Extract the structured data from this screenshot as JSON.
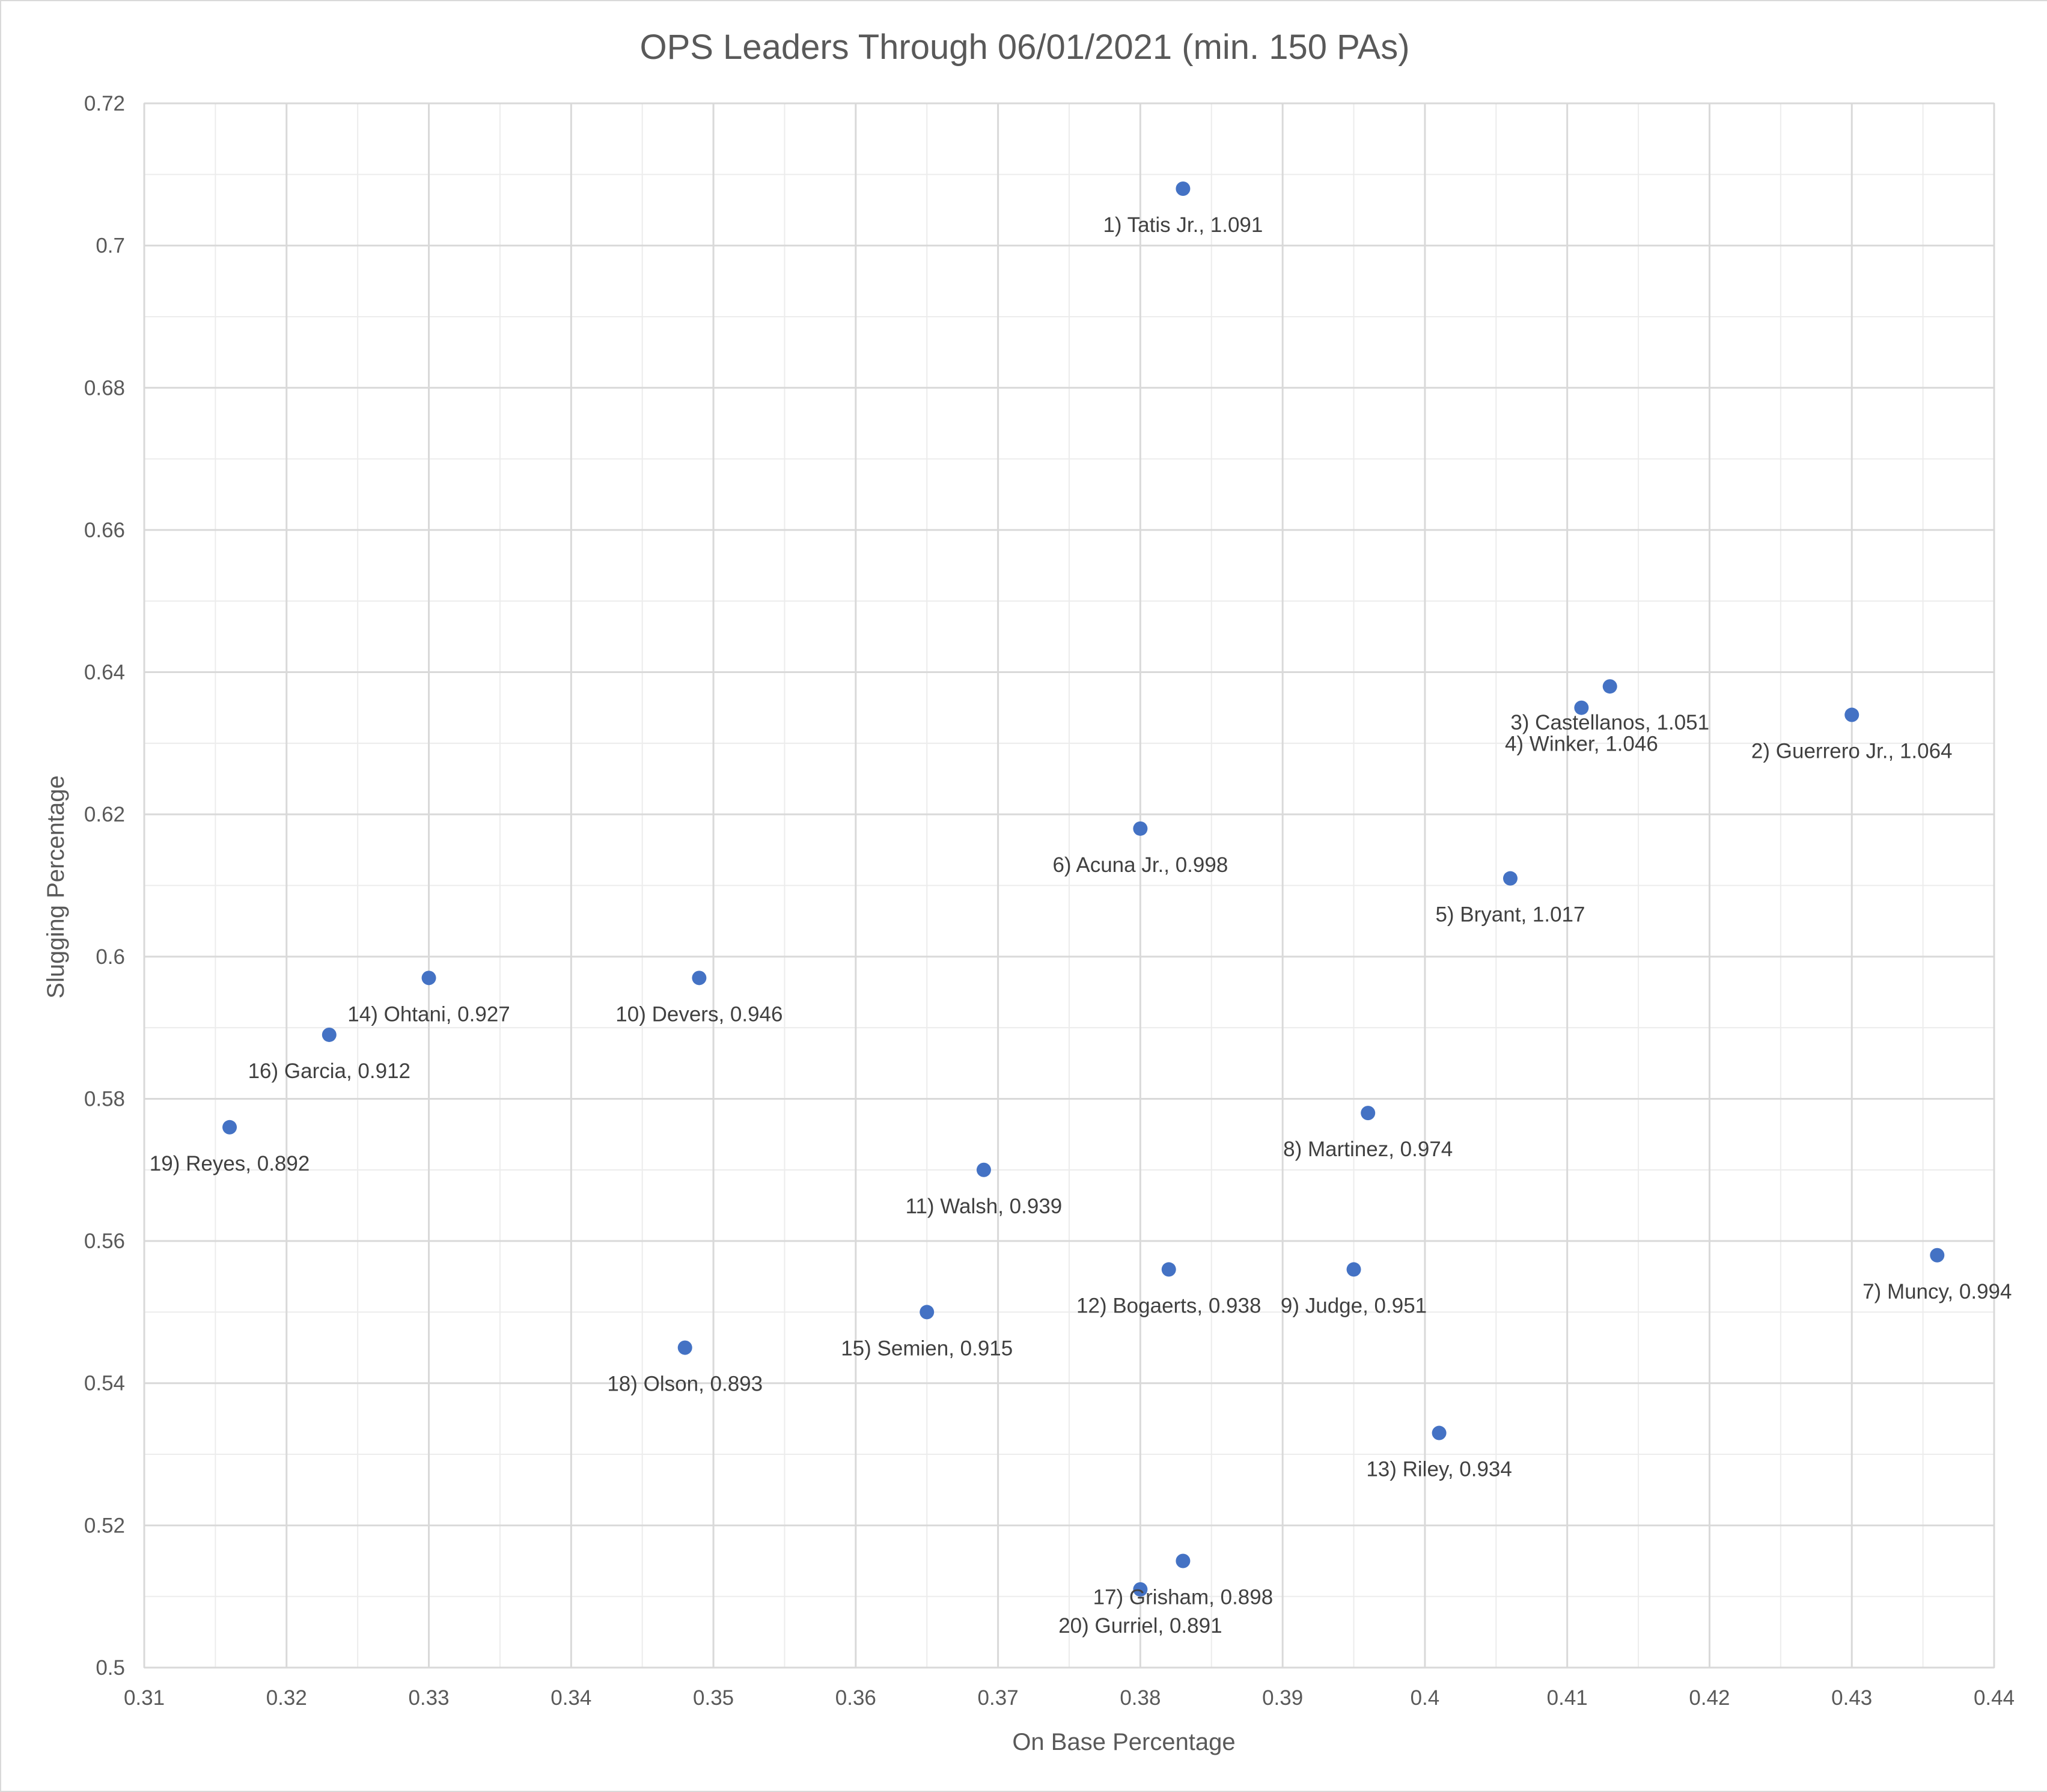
{
  "chart_data": {
    "type": "scatter",
    "title": "OPS Leaders Through 06/01/2021 (min. 150 PAs)",
    "xlabel": "On Base Percentage",
    "ylabel": "Slugging Percentage",
    "xlim": [
      0.31,
      0.44
    ],
    "ylim": [
      0.5,
      0.72
    ],
    "xticks": [
      {
        "value": 0.31,
        "label": "0.31"
      },
      {
        "value": 0.32,
        "label": "0.32"
      },
      {
        "value": 0.33,
        "label": "0.33"
      },
      {
        "value": 0.34,
        "label": "0.34"
      },
      {
        "value": 0.35,
        "label": "0.35"
      },
      {
        "value": 0.36,
        "label": "0.36"
      },
      {
        "value": 0.37,
        "label": "0.37"
      },
      {
        "value": 0.38,
        "label": "0.38"
      },
      {
        "value": 0.39,
        "label": "0.39"
      },
      {
        "value": 0.4,
        "label": "0.4"
      },
      {
        "value": 0.41,
        "label": "0.41"
      },
      {
        "value": 0.42,
        "label": "0.42"
      },
      {
        "value": 0.43,
        "label": "0.43"
      },
      {
        "value": 0.44,
        "label": "0.44"
      }
    ],
    "yticks": [
      {
        "value": 0.5,
        "label": "0.5"
      },
      {
        "value": 0.52,
        "label": "0.52"
      },
      {
        "value": 0.54,
        "label": "0.54"
      },
      {
        "value": 0.56,
        "label": "0.56"
      },
      {
        "value": 0.58,
        "label": "0.58"
      },
      {
        "value": 0.6,
        "label": "0.6"
      },
      {
        "value": 0.62,
        "label": "0.62"
      },
      {
        "value": 0.64,
        "label": "0.64"
      },
      {
        "value": 0.66,
        "label": "0.66"
      },
      {
        "value": 0.68,
        "label": "0.68"
      },
      {
        "value": 0.7,
        "label": "0.7"
      },
      {
        "value": 0.72,
        "label": "0.72"
      }
    ],
    "grid": true,
    "minor_grid": true,
    "legend": "none",
    "colors": {
      "marker": "#4472c4",
      "gridline": "#d9d9d9",
      "minor_gridline": "#ececec",
      "text": "#595959"
    },
    "points": [
      {
        "x": 0.383,
        "y": 0.708,
        "label": "1) Tatis Jr., 1.091"
      },
      {
        "x": 0.43,
        "y": 0.634,
        "label": "2) Guerrero Jr., 1.064"
      },
      {
        "x": 0.413,
        "y": 0.638,
        "label": "3) Castellanos, 1.051"
      },
      {
        "x": 0.411,
        "y": 0.635,
        "label": "4) Winker, 1.046"
      },
      {
        "x": 0.406,
        "y": 0.611,
        "label": "5) Bryant, 1.017"
      },
      {
        "x": 0.38,
        "y": 0.618,
        "label": "6) Acuna Jr., 0.998"
      },
      {
        "x": 0.436,
        "y": 0.558,
        "label": "7) Muncy, 0.994"
      },
      {
        "x": 0.396,
        "y": 0.578,
        "label": "8) Martinez, 0.974"
      },
      {
        "x": 0.395,
        "y": 0.556,
        "label": "9) Judge, 0.951"
      },
      {
        "x": 0.349,
        "y": 0.597,
        "label": "10) Devers, 0.946"
      },
      {
        "x": 0.369,
        "y": 0.57,
        "label": "11) Walsh, 0.939"
      },
      {
        "x": 0.382,
        "y": 0.556,
        "label": "12) Bogaerts, 0.938"
      },
      {
        "x": 0.401,
        "y": 0.533,
        "label": "13) Riley, 0.934"
      },
      {
        "x": 0.33,
        "y": 0.597,
        "label": "14) Ohtani, 0.927"
      },
      {
        "x": 0.365,
        "y": 0.55,
        "label": "15) Semien, 0.915"
      },
      {
        "x": 0.323,
        "y": 0.589,
        "label": "16) Garcia, 0.912"
      },
      {
        "x": 0.383,
        "y": 0.515,
        "label": "17) Grisham, 0.898"
      },
      {
        "x": 0.348,
        "y": 0.545,
        "label": "18) Olson, 0.893"
      },
      {
        "x": 0.316,
        "y": 0.576,
        "label": "19) Reyes, 0.892"
      },
      {
        "x": 0.38,
        "y": 0.511,
        "label": "20) Gurriel, 0.891"
      }
    ]
  }
}
